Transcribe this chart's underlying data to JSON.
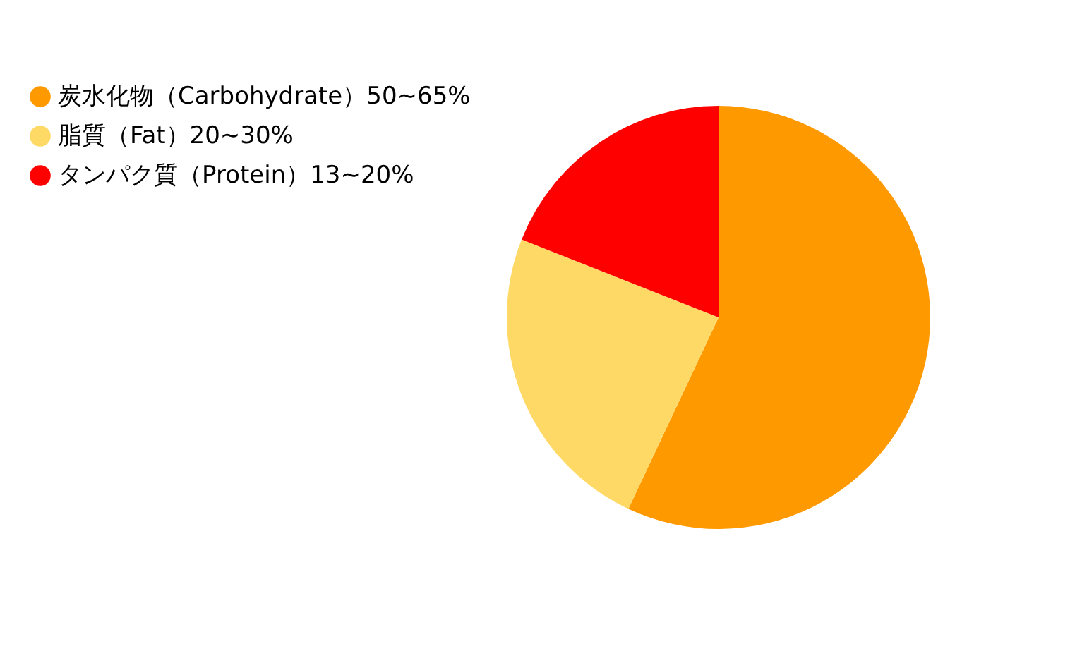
{
  "chart_data": {
    "type": "pie",
    "categories": [
      "炭水化物（Carbohydrate）50~65%",
      "脂質（Fat）20~30%",
      "タンパク質（Protein）13~20%"
    ],
    "values": [
      57,
      24,
      19
    ],
    "colors": [
      "#ff9900",
      "#ffd966",
      "#ff0000"
    ],
    "legend": "top left"
  }
}
